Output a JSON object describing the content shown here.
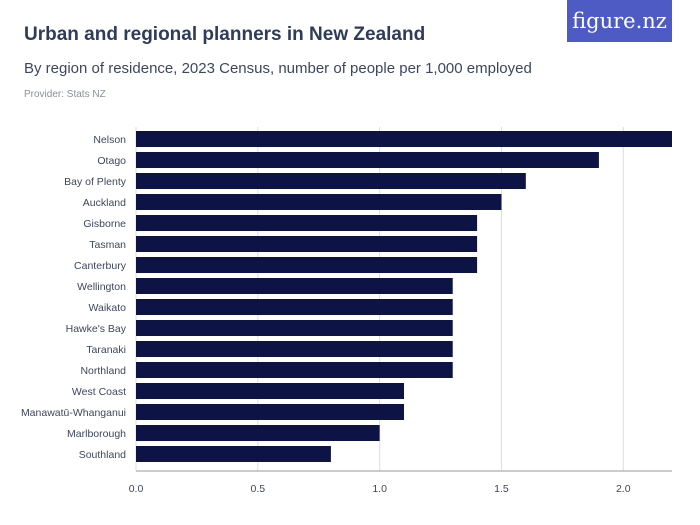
{
  "header": {
    "title": "Urban and regional planners in New Zealand",
    "subtitle": "By region of residence, 2023 Census, number of people per 1,000 employed",
    "provider": "Provider: Stats NZ",
    "logo": "figure.nz"
  },
  "colors": {
    "bar": "#0d1445",
    "grid": "#dddddd",
    "logo_bg": "#4f5bc4"
  },
  "chart_data": {
    "type": "bar",
    "orientation": "horizontal",
    "categories": [
      "Nelson",
      "Otago",
      "Bay of Plenty",
      "Auckland",
      "Gisborne",
      "Tasman",
      "Canterbury",
      "Wellington",
      "Waikato",
      "Hawke's Bay",
      "Taranaki",
      "Northland",
      "West Coast",
      "Manawatū-Whanganui",
      "Marlborough",
      "Southland"
    ],
    "values": [
      2.2,
      1.9,
      1.6,
      1.5,
      1.4,
      1.4,
      1.4,
      1.3,
      1.3,
      1.3,
      1.3,
      1.3,
      1.1,
      1.1,
      1.0,
      0.8
    ],
    "xlim": [
      0,
      2.2
    ],
    "xticks": [
      "0.0",
      "0.5",
      "1.0",
      "1.5",
      "2.0"
    ],
    "grid": true
  }
}
